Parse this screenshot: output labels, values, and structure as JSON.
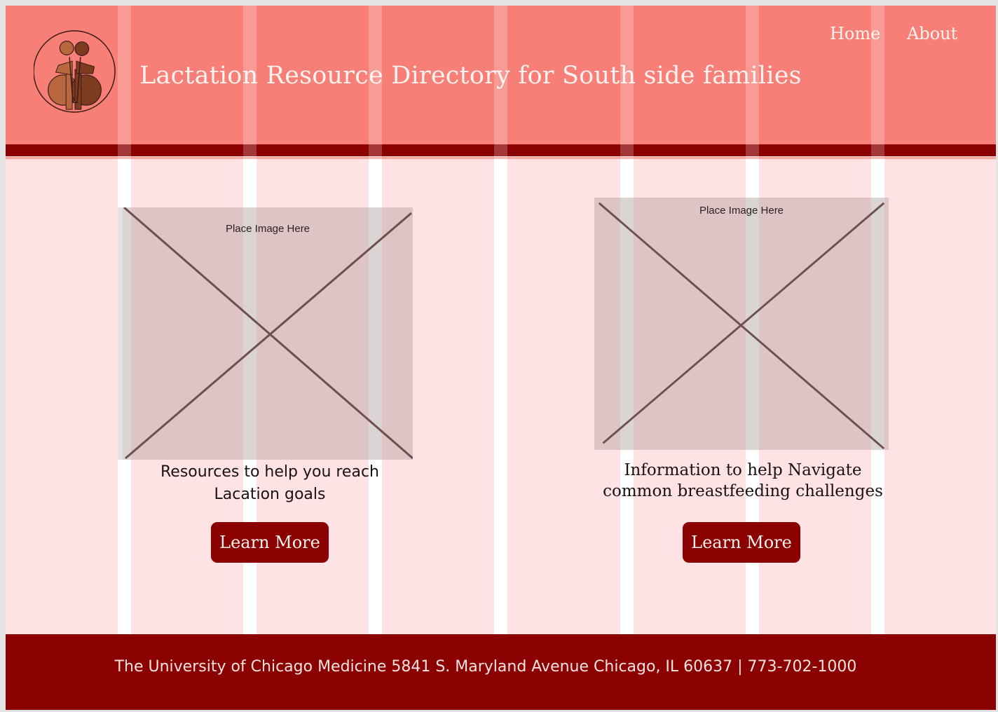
{
  "header": {
    "title": "Lactation Resource Directory for South side families",
    "nav": {
      "home": "Home",
      "about": "About"
    }
  },
  "cards": [
    {
      "placeholder": "Place Image Here",
      "caption_line1": "Resources to help you reach",
      "caption_line2": "Lacation goals",
      "button": "Learn More"
    },
    {
      "placeholder": "Place Image Here",
      "caption_line1": "Information to help Navigate",
      "caption_line2": "common breastfeeding challenges",
      "button": "Learn More"
    }
  ],
  "footer": {
    "text": "The University of Chicago Medicine 5841 S. Maryland Avenue Chicago, IL 60637 | 773-702-1000"
  },
  "colors": {
    "header": "#f87f78",
    "accent": "#8b0000",
    "page_bg": "#ffe3e4",
    "placeholder": "#dfc4c6"
  },
  "icons": {
    "logo": "breastfeeding-figures-logo-icon"
  }
}
